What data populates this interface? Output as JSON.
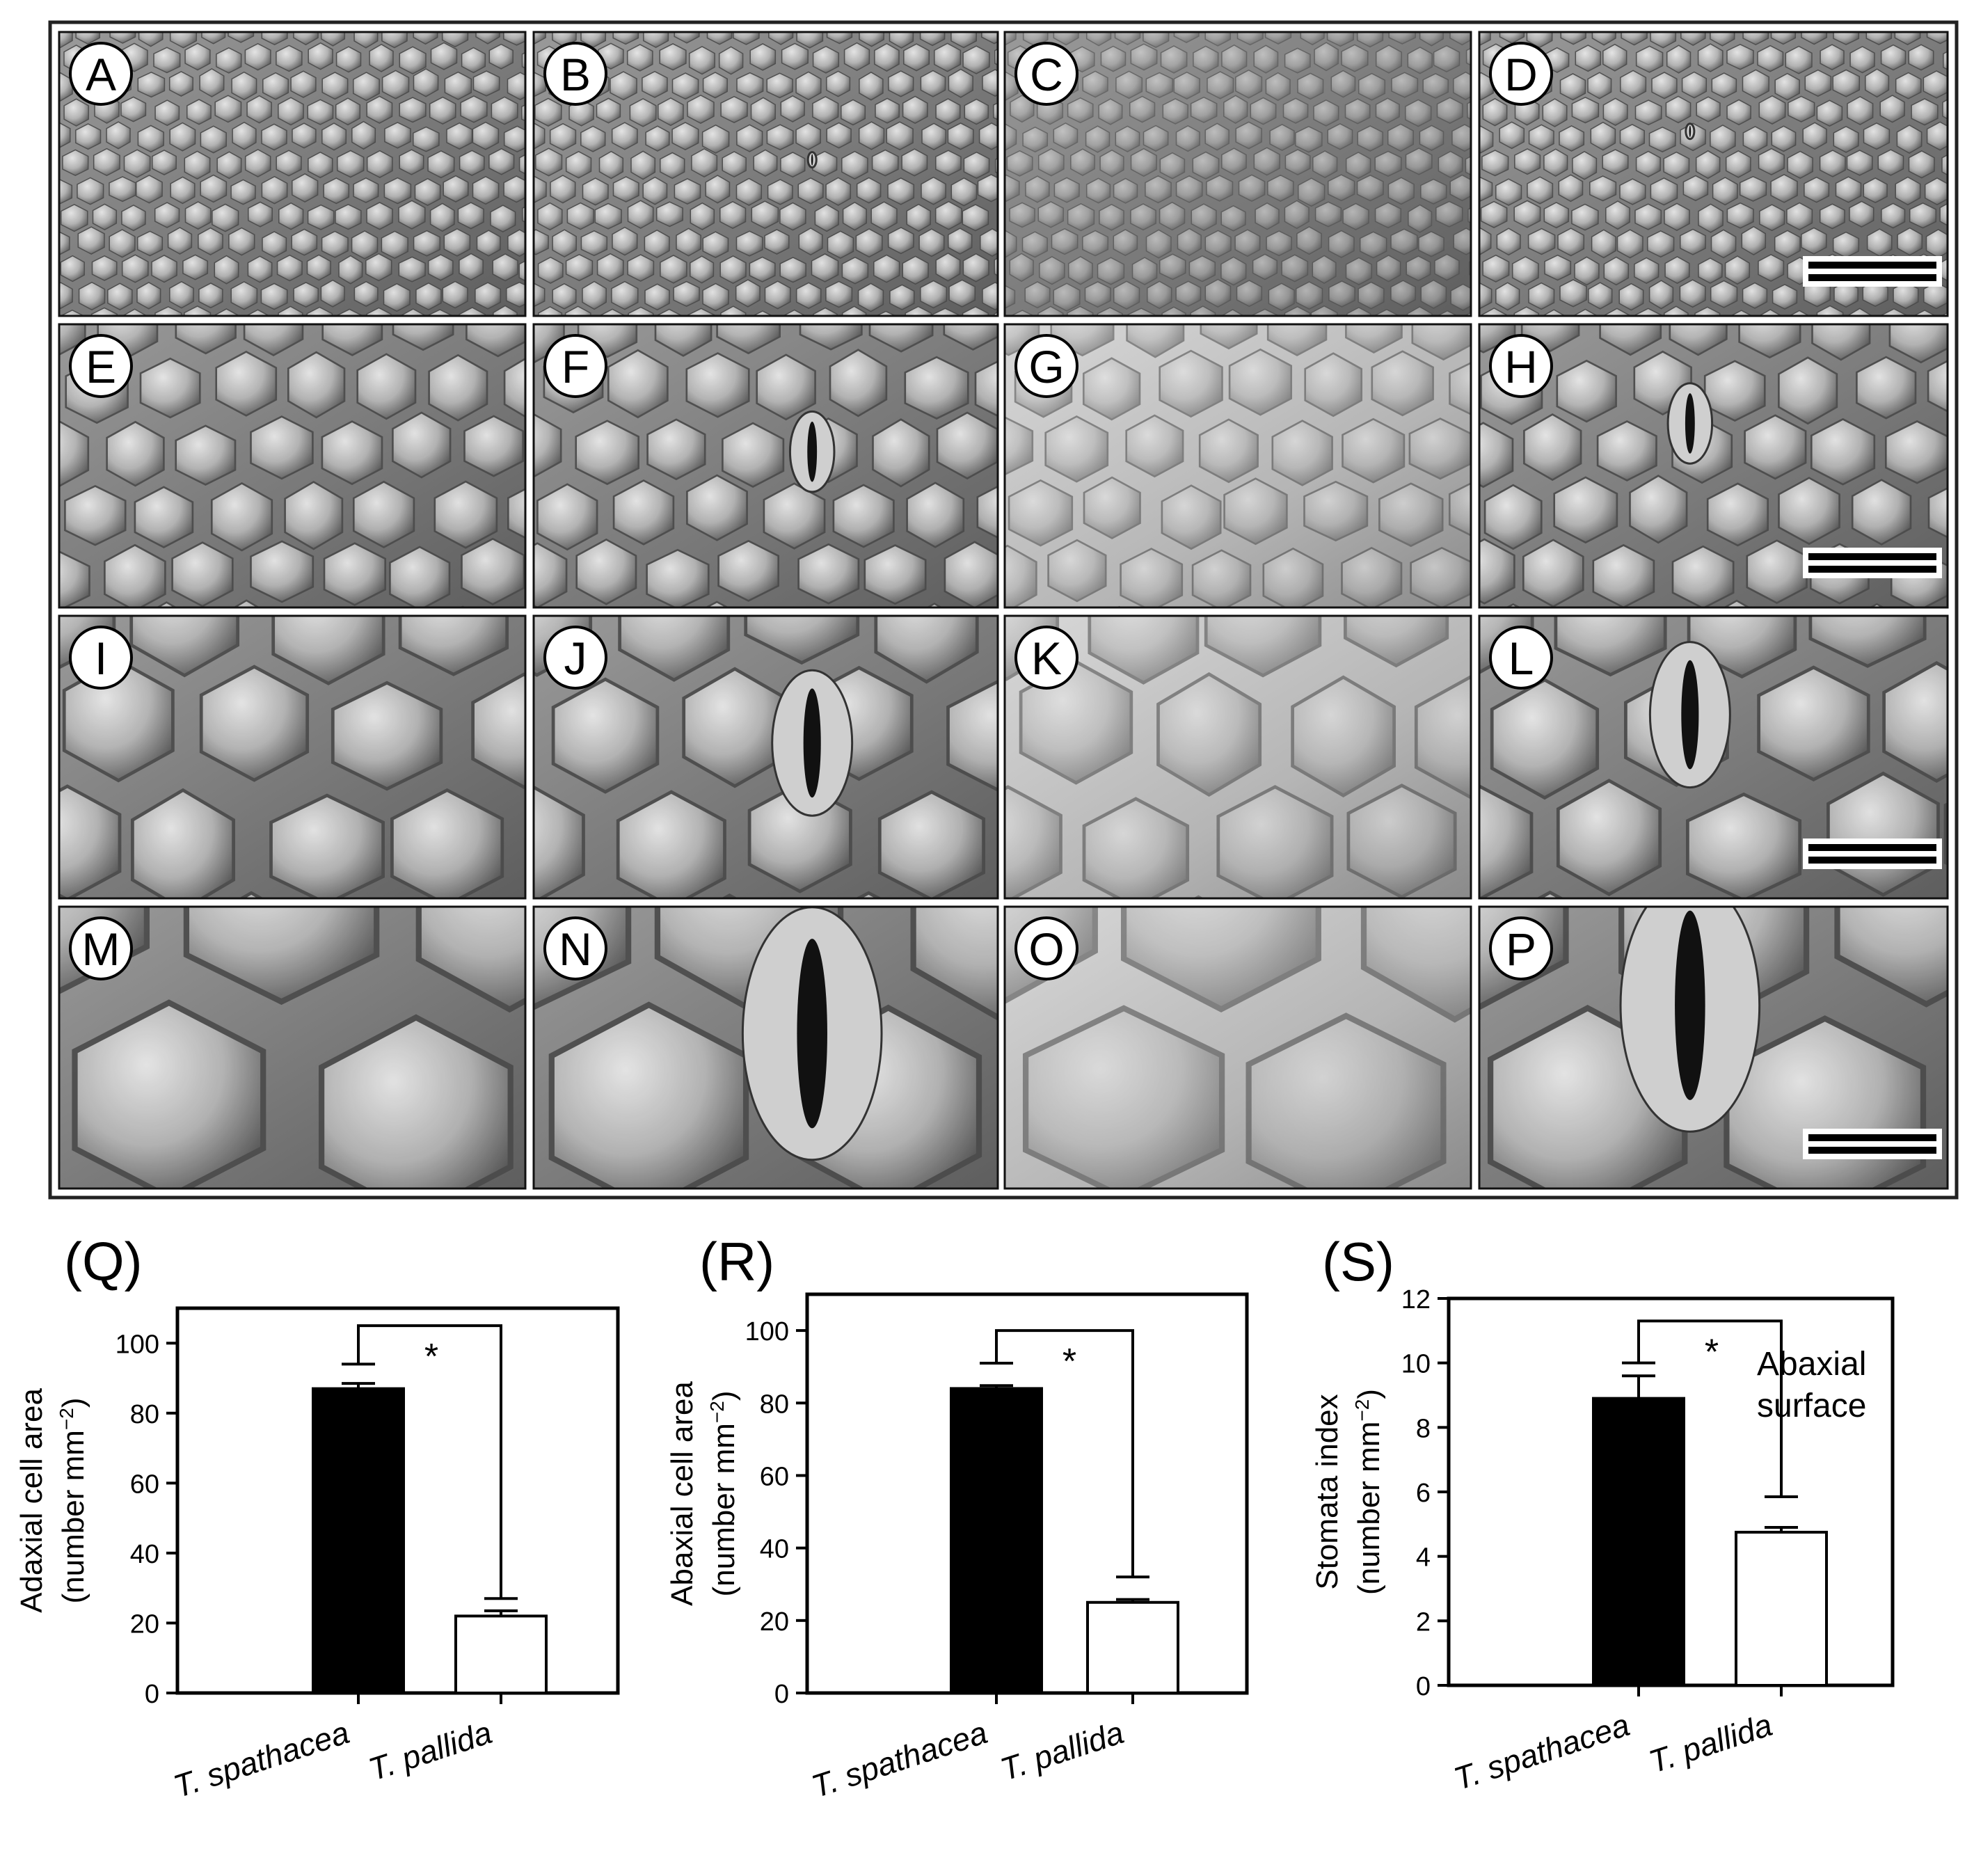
{
  "panels": [
    {
      "label": "A",
      "scale_bar": false
    },
    {
      "label": "B",
      "scale_bar": false
    },
    {
      "label": "C",
      "scale_bar": false
    },
    {
      "label": "D",
      "scale_bar": true
    },
    {
      "label": "E",
      "scale_bar": false
    },
    {
      "label": "F",
      "scale_bar": false
    },
    {
      "label": "G",
      "scale_bar": false
    },
    {
      "label": "H",
      "scale_bar": true
    },
    {
      "label": "I",
      "scale_bar": false
    },
    {
      "label": "J",
      "scale_bar": false
    },
    {
      "label": "K",
      "scale_bar": false
    },
    {
      "label": "L",
      "scale_bar": true
    },
    {
      "label": "M",
      "scale_bar": false
    },
    {
      "label": "N",
      "scale_bar": false
    },
    {
      "label": "O",
      "scale_bar": false
    },
    {
      "label": "P",
      "scale_bar": true
    }
  ],
  "chart_data": [
    {
      "type": "bar",
      "panel_label": "(Q)",
      "categories": [
        "T. spathacea",
        "T. pallida"
      ],
      "values": [
        87,
        22
      ],
      "errors": [
        1.5,
        1.5
      ],
      "bar_colors": [
        "#000000",
        "#ffffff"
      ],
      "ylabel_line1": "Adaxial cell area",
      "ylabel_line2_base": "(number mm",
      "ylabel_line2_sup": "−2",
      "ylabel_line2_end": ")",
      "ylim": [
        0,
        110
      ],
      "yticks": [
        "0",
        "20",
        "40",
        "60",
        "80",
        "100"
      ],
      "ytick_values": [
        0,
        20,
        40,
        60,
        80,
        100
      ],
      "bracket_left": 94,
      "bracket_right": 27,
      "bracket_top": 105,
      "significance": "*",
      "annotation": []
    },
    {
      "type": "bar",
      "panel_label": "(R)",
      "categories": [
        "T. spathacea",
        "T. pallida"
      ],
      "values": [
        84,
        25
      ],
      "errors": [
        0.8,
        0.8
      ],
      "bar_colors": [
        "#000000",
        "#ffffff"
      ],
      "ylabel_line1": "Abaxial cell area",
      "ylabel_line2_base": "(number mm",
      "ylabel_line2_sup": "−2",
      "ylabel_line2_end": ")",
      "ylim": [
        0,
        110
      ],
      "yticks": [
        "0",
        "20",
        "40",
        "60",
        "80",
        "100"
      ],
      "ytick_values": [
        0,
        20,
        40,
        60,
        80,
        100
      ],
      "bracket_left": 91,
      "bracket_right": 32,
      "bracket_top": 100,
      "significance": "*",
      "annotation": []
    },
    {
      "type": "bar",
      "panel_label": "(S)",
      "categories": [
        "T. spathacea",
        "T. pallida"
      ],
      "values": [
        8.9,
        4.75
      ],
      "errors": [
        0.7,
        0.15
      ],
      "bar_colors": [
        "#000000",
        "#ffffff"
      ],
      "ylabel_line1": "Stomata index",
      "ylabel_line2_base": "(number mm",
      "ylabel_line2_sup": "−2",
      "ylabel_line2_end": ")",
      "ylim": [
        0,
        12
      ],
      "yticks": [
        "0",
        "2",
        "4",
        "6",
        "8",
        "10",
        "12"
      ],
      "ytick_values": [
        0,
        2,
        4,
        6,
        8,
        10,
        12
      ],
      "bracket_left": 10,
      "bracket_right": 5.85,
      "bracket_top": 11.3,
      "significance": "*",
      "annotation": [
        "Abaxial",
        "surface"
      ]
    }
  ]
}
